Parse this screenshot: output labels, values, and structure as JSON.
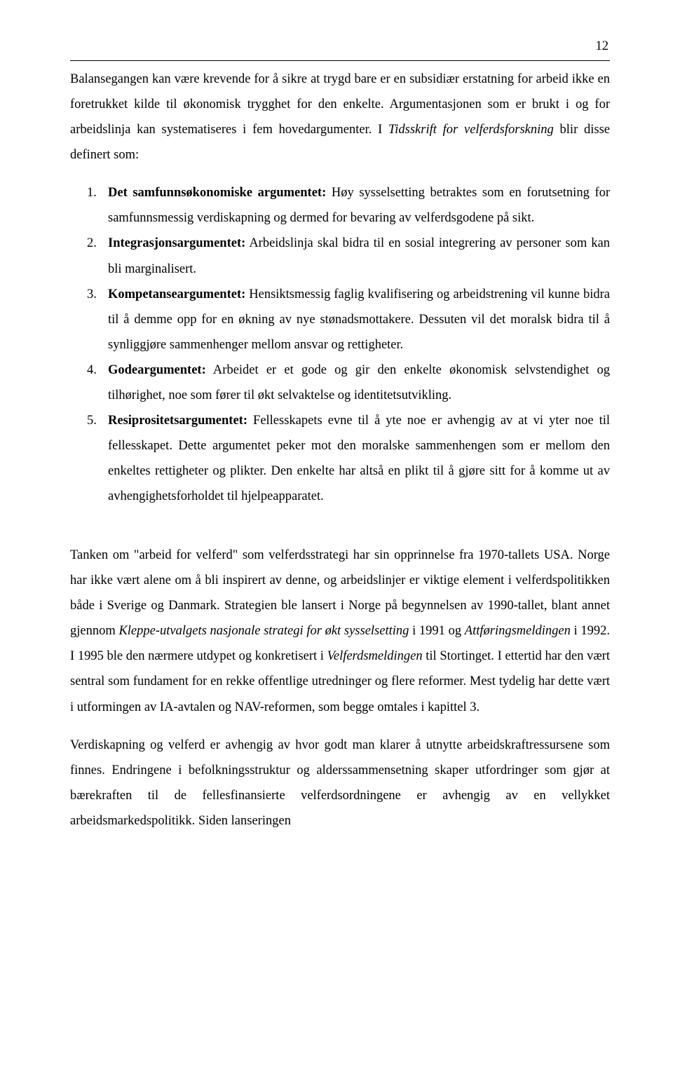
{
  "page": {
    "number": "12"
  },
  "paragraphs": {
    "p1_part1": "Balansegangen kan være krevende for å sikre at trygd bare er en subsidiær erstatning for arbeid ikke en foretrukket kilde til økonomisk trygghet for den enkelte. Argumentasjonen som er brukt i og for arbeidslinja kan systematiseres i fem hovedargumenter. I ",
    "p1_italic": "Tidsskrift for velferdsforskning",
    "p1_part2": " blir disse definert som:",
    "p2_part1": "Tanken om \"arbeid for velferd\" som velferdsstrategi har sin opprinnelse fra 1970-tallets USA. Norge har ikke vært alene om å bli inspirert av denne, og arbeidslinjer er viktige element i velferdspolitikken både i Sverige og Danmark. Strategien ble lansert i Norge på begynnelsen av 1990-tallet, blant annet gjennom ",
    "p2_italic1": "Kleppe-utvalgets nasjonale strategi for økt sysselsetting",
    "p2_part2": " i 1991 og ",
    "p2_italic2": "Attføringsmeldingen",
    "p2_part3": " i 1992. I 1995 ble den nærmere utdypet og konkretisert i ",
    "p2_italic3": "Velferdsmeldingen",
    "p2_part4": " til Stortinget. I ettertid har den vært sentral som fundament for en rekke offentlige utredninger og flere reformer.  Mest tydelig har dette vært i utformingen av IA-avtalen og NAV-reformen, som begge omtales i kapittel 3.",
    "p3": "Verdiskapning og velferd er avhengig av hvor godt man klarer å utnytte arbeidskraftressursene som finnes. Endringene i befolkningsstruktur og alderssammensetning skaper utfordringer som gjør at bærekraften til de fellesfinansierte velferdsordningene er avhengig av en vellykket arbeidsmarkedspolitikk. Siden lanseringen"
  },
  "list": {
    "items": [
      {
        "number": "1.",
        "bold": "Det samfunnsøkonomiske argumentet:",
        "text": " Høy sysselsetting betraktes som en forutsetning for samfunnsmessig verdiskapning og dermed for bevaring av velferdsgodene på sikt."
      },
      {
        "number": "2.",
        "bold": "Integrasjonsargumentet:",
        "text": " Arbeidslinja skal bidra til en sosial integrering av personer som kan bli marginalisert."
      },
      {
        "number": "3.",
        "bold": "Kompetanseargumentet:",
        "text": " Hensiktsmessig faglig kvalifisering og arbeidstrening vil kunne bidra til å demme opp for en økning av nye stønadsmottakere. Dessuten vil det moralsk bidra til å synliggjøre sammenhenger mellom ansvar og rettigheter."
      },
      {
        "number": "4.",
        "bold": "Godeargumentet:",
        "text": " Arbeidet er et gode og gir den enkelte økonomisk selvstendighet og tilhørighet, noe som fører til økt selvaktelse og identitetsutvikling."
      },
      {
        "number": "5.",
        "bold": "Resiprositetsargumentet:",
        "text": " Fellesskapets evne til å yte noe er avhengig av at vi yter noe til fellesskapet. Dette argumentet peker mot den moralske sammenhengen som er mellom den enkeltes rettigheter og plikter. Den enkelte har altså en plikt til å gjøre sitt for å komme ut av avhengighetsforholdet til hjelpeapparatet."
      }
    ]
  }
}
